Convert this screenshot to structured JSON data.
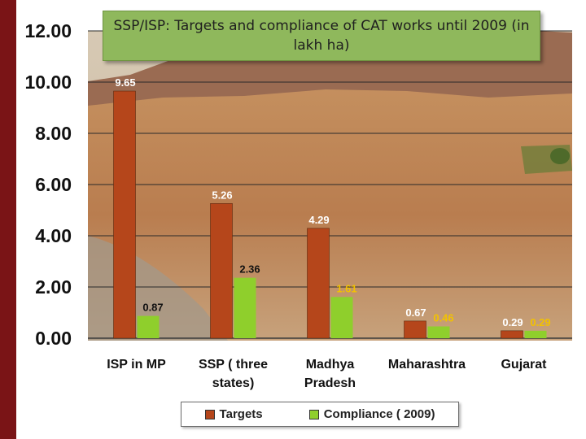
{
  "slide": {
    "accent_color": "#7a1416"
  },
  "title": {
    "text": "SSP/ISP: Targets and compliance of CAT works until 2009 (in lakh ha)",
    "background": "#8fb85c"
  },
  "chart_data": {
    "type": "bar",
    "title": "SSP/ISP: Targets and compliance of CAT works until 2009 (in lakh ha)",
    "categories": [
      "ISP in MP",
      "SSP ( three states)",
      "Madhya Pradesh",
      "Maharashtra",
      "Gujarat"
    ],
    "category_lines": [
      [
        "ISP in MP"
      ],
      [
        "SSP ( three",
        "states)"
      ],
      [
        "Madhya",
        "Pradesh"
      ],
      [
        "Maharashtra"
      ],
      [
        "Gujarat"
      ]
    ],
    "series": [
      {
        "name": "Targets",
        "color": "#b5461b",
        "values": [
          9.65,
          5.26,
          4.29,
          0.67,
          0.29
        ],
        "labels": [
          "9.65",
          "5.26",
          "4.29",
          "0.67",
          "0.29"
        ]
      },
      {
        "name": "Compliance ( 2009)",
        "color": "#8fcf2c",
        "values": [
          0.87,
          2.36,
          1.61,
          0.46,
          0.29
        ],
        "labels": [
          "0.87",
          "2.36",
          "1.61",
          "0.46",
          "0.29"
        ]
      }
    ],
    "ylim": [
      0,
      12
    ],
    "yticks": [
      "0.00",
      "2.00",
      "4.00",
      "6.00",
      "8.00",
      "10.00",
      "12.00"
    ],
    "grid": true,
    "background": "photo of eroded hillside landscape",
    "legend": "bottom"
  }
}
